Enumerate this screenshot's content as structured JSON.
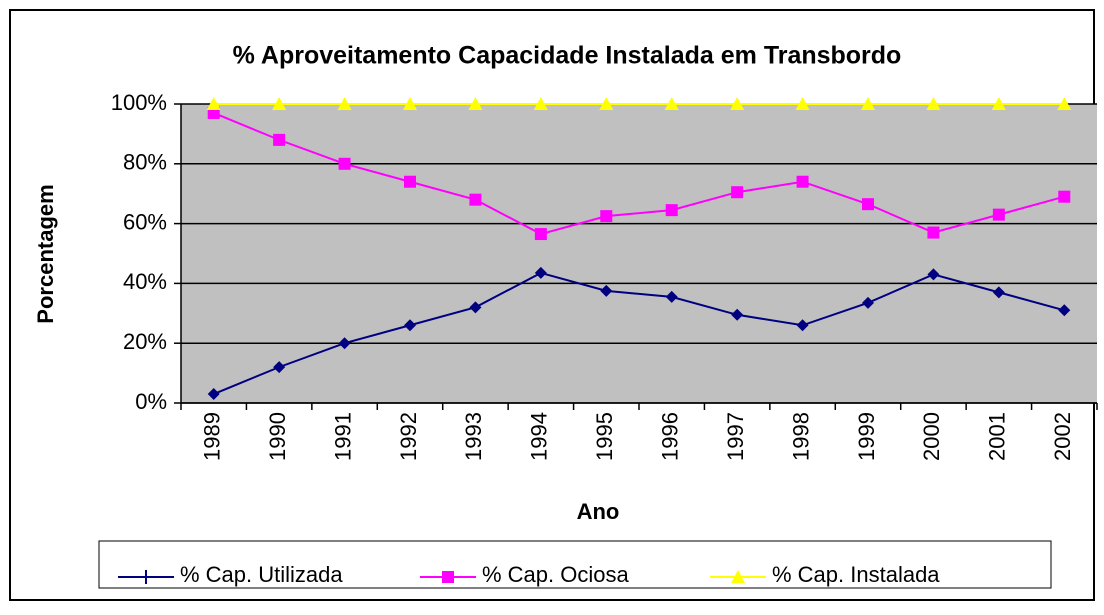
{
  "chart_data": {
    "type": "line",
    "title": "% Aproveitamento Capacidade Instalada  em Transbordo",
    "x_label": "Ano",
    "y_label": "Porcentagem",
    "categories": [
      "1989",
      "1990",
      "1991",
      "1992",
      "1993",
      "1994",
      "1995",
      "1996",
      "1997",
      "1998",
      "1999",
      "2000",
      "2001",
      "2002"
    ],
    "series": [
      {
        "name": "% Cap. Utilizada",
        "color": "#000080",
        "values": [
          3,
          12,
          20,
          26,
          32,
          43.5,
          37.5,
          35.5,
          29.5,
          26,
          33.5,
          43,
          37,
          31
        ]
      },
      {
        "name": "% Cap. Ociosa",
        "color": "#ff00ff",
        "values": [
          97,
          88,
          80,
          74,
          68,
          56.5,
          62.5,
          64.5,
          70.5,
          74,
          66.5,
          57,
          63,
          69
        ]
      },
      {
        "name": "% Cap. Instalada",
        "color": "#ffff00",
        "values": [
          100,
          100,
          100,
          100,
          100,
          100,
          100,
          100,
          100,
          100,
          100,
          100,
          100,
          100
        ]
      }
    ],
    "ylim": [
      0,
      100
    ],
    "yticks": [
      {
        "value": 0,
        "label": "0%"
      },
      {
        "value": 20,
        "label": "20%"
      },
      {
        "value": 40,
        "label": "40%"
      },
      {
        "value": 60,
        "label": "60%"
      },
      {
        "value": 80,
        "label": "80%"
      },
      {
        "value": 100,
        "label": "100%"
      }
    ],
    "grid": true,
    "legend": "bottom"
  }
}
